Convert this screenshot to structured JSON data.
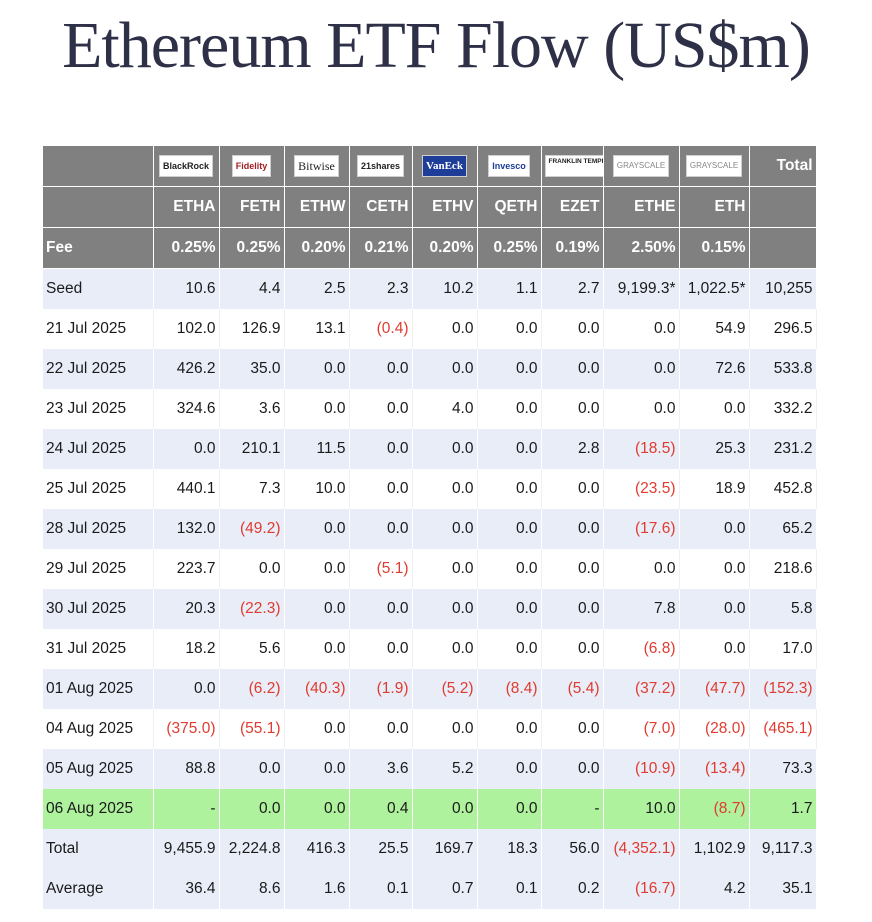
{
  "title": "Ethereum ETF Flow (US$m)",
  "issuers": [
    {
      "logo": "BlackRock",
      "ticker": "ETHA",
      "fee": "0.25%",
      "icon": "blackrock-logo"
    },
    {
      "logo": "Fidelity",
      "ticker": "FETH",
      "fee": "0.25%",
      "icon": "fidelity-logo"
    },
    {
      "logo": "Bitwise",
      "ticker": "ETHW",
      "fee": "0.20%",
      "icon": "bitwise-logo"
    },
    {
      "logo": "21shares",
      "ticker": "CETH",
      "fee": "0.21%",
      "icon": "21shares-logo"
    },
    {
      "logo": "VanEck",
      "ticker": "ETHV",
      "fee": "0.20%",
      "icon": "vaneck-logo"
    },
    {
      "logo": "Invesco",
      "ticker": "QETH",
      "fee": "0.25%",
      "icon": "invesco-logo"
    },
    {
      "logo": "FRANKLIN TEMPLETON",
      "ticker": "EZET",
      "fee": "0.19%",
      "icon": "franklin-templeton-logo"
    },
    {
      "logo": "GRAYSCALE",
      "ticker": "ETHE",
      "fee": "2.50%",
      "icon": "grayscale-logo"
    },
    {
      "logo": "GRAYSCALE",
      "ticker": "ETH",
      "fee": "0.15%",
      "icon": "grayscale-logo"
    }
  ],
  "total_header": "Total",
  "fee_label": "Fee",
  "rows": [
    {
      "label": "Seed",
      "style": "shade",
      "values": [
        "10.6",
        "4.4",
        "2.5",
        "2.3",
        "10.2",
        "1.1",
        "2.7",
        "9,199.3*",
        "1,022.5*",
        "10,255"
      ]
    },
    {
      "label": "21 Jul 2025",
      "style": "plain",
      "values": [
        "102.0",
        "126.9",
        "13.1",
        "(0.4)",
        "0.0",
        "0.0",
        "0.0",
        "0.0",
        "54.9",
        "296.5"
      ]
    },
    {
      "label": "22 Jul 2025",
      "style": "shade",
      "values": [
        "426.2",
        "35.0",
        "0.0",
        "0.0",
        "0.0",
        "0.0",
        "0.0",
        "0.0",
        "72.6",
        "533.8"
      ]
    },
    {
      "label": "23 Jul 2025",
      "style": "plain",
      "values": [
        "324.6",
        "3.6",
        "0.0",
        "0.0",
        "4.0",
        "0.0",
        "0.0",
        "0.0",
        "0.0",
        "332.2"
      ]
    },
    {
      "label": "24 Jul 2025",
      "style": "shade",
      "values": [
        "0.0",
        "210.1",
        "11.5",
        "0.0",
        "0.0",
        "0.0",
        "2.8",
        "(18.5)",
        "25.3",
        "231.2"
      ]
    },
    {
      "label": "25 Jul 2025",
      "style": "plain",
      "values": [
        "440.1",
        "7.3",
        "10.0",
        "0.0",
        "0.0",
        "0.0",
        "0.0",
        "(23.5)",
        "18.9",
        "452.8"
      ]
    },
    {
      "label": "28 Jul 2025",
      "style": "shade",
      "values": [
        "132.0",
        "(49.2)",
        "0.0",
        "0.0",
        "0.0",
        "0.0",
        "0.0",
        "(17.6)",
        "0.0",
        "65.2"
      ]
    },
    {
      "label": "29 Jul 2025",
      "style": "plain",
      "values": [
        "223.7",
        "0.0",
        "0.0",
        "(5.1)",
        "0.0",
        "0.0",
        "0.0",
        "0.0",
        "0.0",
        "218.6"
      ]
    },
    {
      "label": "30 Jul 2025",
      "style": "shade",
      "values": [
        "20.3",
        "(22.3)",
        "0.0",
        "0.0",
        "0.0",
        "0.0",
        "0.0",
        "7.8",
        "0.0",
        "5.8"
      ]
    },
    {
      "label": "31 Jul 2025",
      "style": "plain",
      "values": [
        "18.2",
        "5.6",
        "0.0",
        "0.0",
        "0.0",
        "0.0",
        "0.0",
        "(6.8)",
        "0.0",
        "17.0"
      ]
    },
    {
      "label": "01 Aug 2025",
      "style": "shade",
      "values": [
        "0.0",
        "(6.2)",
        "(40.3)",
        "(1.9)",
        "(5.2)",
        "(8.4)",
        "(5.4)",
        "(37.2)",
        "(47.7)",
        "(152.3)"
      ]
    },
    {
      "label": "04 Aug 2025",
      "style": "plain",
      "values": [
        "(375.0)",
        "(55.1)",
        "0.0",
        "0.0",
        "0.0",
        "0.0",
        "0.0",
        "(7.0)",
        "(28.0)",
        "(465.1)"
      ]
    },
    {
      "label": "05 Aug 2025",
      "style": "shade",
      "values": [
        "88.8",
        "0.0",
        "0.0",
        "3.6",
        "5.2",
        "0.0",
        "0.0",
        "(10.9)",
        "(13.4)",
        "73.3"
      ]
    },
    {
      "label": "06 Aug 2025",
      "style": "green",
      "values": [
        "-",
        "0.0",
        "0.0",
        "0.4",
        "0.0",
        "0.0",
        "-",
        "10.0",
        "(8.7)",
        "1.7"
      ]
    },
    {
      "label": "Total",
      "style": "shade",
      "values": [
        "9,455.9",
        "2,224.8",
        "416.3",
        "25.5",
        "169.7",
        "18.3",
        "56.0",
        "(4,352.1)",
        "1,102.9",
        "9,117.3"
      ]
    },
    {
      "label": "Average",
      "style": "shade",
      "values": [
        "36.4",
        "8.6",
        "1.6",
        "0.1",
        "0.7",
        "0.1",
        "0.2",
        "(16.7)",
        "4.2",
        "35.1"
      ]
    }
  ],
  "colors": {
    "header_bg": "#808080",
    "shade_bg": "#e8edf8",
    "green_bg": "#aef29d",
    "negative": "#e03b2f",
    "title": "#2d3047"
  }
}
